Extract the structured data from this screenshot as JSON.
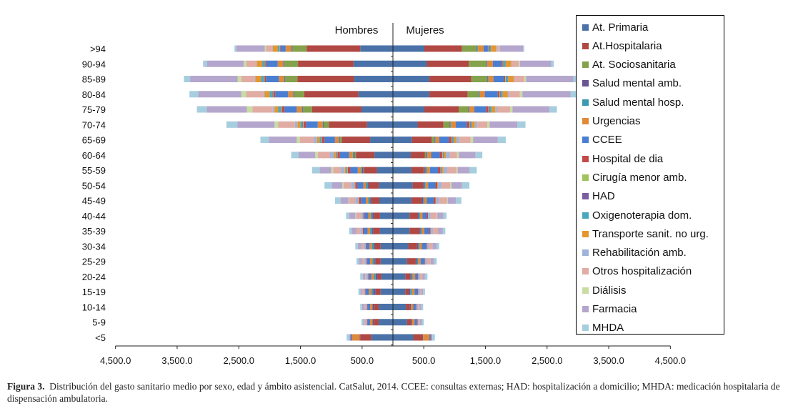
{
  "chart_data": {
    "type": "bar",
    "orientation": "horizontal",
    "stacked": true,
    "population_pyramid": true,
    "categories": [
      "<5",
      "5-9",
      "10-14",
      "15-19",
      "20-24",
      "25-29",
      "30-34",
      "35-39",
      "40-44",
      "45-49",
      "50-54",
      "55-59",
      "60-64",
      "65-69",
      "70-74",
      "75-79",
      "80-84",
      "85-89",
      "90-94",
      ">94"
    ],
    "header_left": "Hombres",
    "header_right": "Mujeres",
    "xlim": [
      -4500,
      4500
    ],
    "xticks": [
      -4500,
      -3500,
      -2500,
      -1500,
      -500,
      500,
      1500,
      2500,
      3500,
      4500
    ],
    "xtick_labels": [
      "4,500.0",
      "3,500.0",
      "2,500.0",
      "1,500.0",
      "500.0",
      "500.0",
      "1,500.0",
      "2,500.0",
      "3,500.0",
      "4,500.0"
    ],
    "grid": false,
    "legend_position": "right",
    "series": [
      {
        "name": "At. Primaria",
        "color": "#4a72a8",
        "hombres": [
          350,
          230,
          230,
          200,
          190,
          200,
          200,
          210,
          210,
          220,
          230,
          260,
          300,
          370,
          420,
          510,
          560,
          630,
          640,
          530
        ],
        "mujeres": [
          330,
          230,
          210,
          200,
          200,
          230,
          250,
          270,
          270,
          300,
          320,
          300,
          290,
          310,
          400,
          510,
          590,
          590,
          550,
          510
        ]
      },
      {
        "name": "At.Hospitalaria",
        "color": "#b04844",
        "hombres": [
          180,
          80,
          70,
          80,
          60,
          80,
          90,
          110,
          100,
          130,
          160,
          210,
          300,
          460,
          620,
          800,
          880,
          920,
          900,
          870
        ],
        "mujeres": [
          150,
          60,
          60,
          60,
          80,
          140,
          140,
          160,
          130,
          170,
          170,
          200,
          230,
          320,
          420,
          560,
          620,
          680,
          680,
          610
        ]
      },
      {
        "name": "At. Sociosanitaria",
        "color": "#84a24c",
        "hombres": [
          0,
          0,
          0,
          0,
          0,
          0,
          0,
          0,
          0,
          0,
          0,
          10,
          20,
          30,
          80,
          150,
          160,
          200,
          220,
          230
        ],
        "mujeres": [
          0,
          0,
          0,
          0,
          0,
          0,
          0,
          0,
          0,
          0,
          0,
          10,
          20,
          40,
          100,
          150,
          180,
          260,
          280,
          240
        ]
      },
      {
        "name": "Salud mental amb.",
        "color": "#6b5592",
        "hombres": [
          10,
          20,
          30,
          40,
          30,
          20,
          20,
          20,
          20,
          20,
          20,
          20,
          10,
          10,
          10,
          10,
          10,
          10,
          10,
          10
        ],
        "mujeres": [
          10,
          20,
          20,
          20,
          20,
          20,
          20,
          20,
          20,
          20,
          20,
          20,
          10,
          10,
          10,
          10,
          10,
          10,
          10,
          10
        ]
      },
      {
        "name": "Salud mental hosp.",
        "color": "#3c9ab0",
        "hombres": [
          0,
          0,
          0,
          30,
          30,
          30,
          30,
          30,
          30,
          30,
          30,
          20,
          20,
          10,
          10,
          10,
          10,
          10,
          10,
          10
        ],
        "mujeres": [
          0,
          0,
          0,
          30,
          20,
          20,
          20,
          20,
          20,
          20,
          20,
          20,
          10,
          10,
          10,
          10,
          10,
          10,
          10,
          10
        ]
      },
      {
        "name": "Urgencias",
        "color": "#e08a3a",
        "hombres": [
          120,
          40,
          40,
          40,
          40,
          40,
          40,
          40,
          40,
          40,
          40,
          50,
          60,
          60,
          80,
          80,
          80,
          80,
          90,
          90
        ],
        "mujeres": [
          100,
          40,
          40,
          40,
          40,
          40,
          40,
          40,
          40,
          40,
          40,
          50,
          60,
          60,
          80,
          80,
          80,
          80,
          90,
          90
        ]
      },
      {
        "name": "CCEE",
        "color": "#4a7ed0",
        "hombres": [
          20,
          40,
          40,
          50,
          40,
          50,
          50,
          60,
          60,
          80,
          100,
          120,
          150,
          170,
          190,
          200,
          210,
          210,
          180,
          80
        ],
        "mujeres": [
          20,
          40,
          40,
          50,
          40,
          60,
          70,
          80,
          70,
          110,
          120,
          130,
          140,
          160,
          180,
          190,
          210,
          170,
          140,
          70
        ]
      },
      {
        "name": "Hospital de dia",
        "color": "#c44a4a",
        "hombres": [
          10,
          10,
          10,
          10,
          10,
          10,
          10,
          20,
          20,
          30,
          30,
          40,
          40,
          40,
          40,
          40,
          30,
          20,
          20,
          10
        ],
        "mujeres": [
          10,
          10,
          10,
          10,
          10,
          10,
          10,
          20,
          20,
          30,
          30,
          40,
          40,
          40,
          40,
          40,
          30,
          20,
          20,
          10
        ]
      },
      {
        "name": "Cirugía menor amb.",
        "color": "#9fc45c",
        "hombres": [
          0,
          0,
          0,
          0,
          0,
          0,
          0,
          0,
          0,
          0,
          0,
          10,
          10,
          10,
          10,
          10,
          10,
          10,
          10,
          10
        ],
        "mujeres": [
          0,
          0,
          0,
          0,
          0,
          0,
          0,
          0,
          0,
          0,
          0,
          10,
          10,
          10,
          10,
          10,
          10,
          10,
          10,
          10
        ]
      },
      {
        "name": "HAD",
        "color": "#7b5ea2",
        "hombres": [
          0,
          0,
          0,
          0,
          0,
          0,
          0,
          0,
          0,
          0,
          0,
          10,
          10,
          10,
          10,
          10,
          10,
          10,
          10,
          10
        ],
        "mujeres": [
          0,
          0,
          0,
          0,
          0,
          0,
          0,
          0,
          0,
          0,
          0,
          10,
          10,
          10,
          10,
          10,
          10,
          10,
          10,
          10
        ]
      },
      {
        "name": "Oxigenoterapia dom.",
        "color": "#4aa8bc",
        "hombres": [
          0,
          0,
          0,
          0,
          0,
          0,
          0,
          0,
          0,
          0,
          0,
          10,
          10,
          20,
          30,
          40,
          40,
          40,
          30,
          20
        ],
        "mujeres": [
          0,
          0,
          0,
          0,
          0,
          0,
          0,
          0,
          0,
          0,
          0,
          10,
          10,
          20,
          20,
          30,
          30,
          30,
          30,
          20
        ]
      },
      {
        "name": "Transporte sanit. no urg.",
        "color": "#e6962e",
        "hombres": [
          0,
          0,
          0,
          0,
          0,
          0,
          0,
          0,
          0,
          10,
          10,
          20,
          30,
          40,
          50,
          60,
          80,
          90,
          90,
          80
        ],
        "mujeres": [
          0,
          0,
          0,
          0,
          0,
          0,
          0,
          0,
          0,
          10,
          10,
          20,
          30,
          40,
          50,
          60,
          80,
          90,
          90,
          80
        ]
      },
      {
        "name": "Rehabilitación amb.",
        "color": "#9fb4d8",
        "hombres": [
          20,
          20,
          30,
          30,
          30,
          30,
          30,
          40,
          40,
          50,
          60,
          60,
          60,
          50,
          40,
          30,
          20,
          10,
          10,
          10
        ],
        "mujeres": [
          20,
          20,
          30,
          30,
          30,
          30,
          30,
          40,
          40,
          50,
          60,
          60,
          60,
          50,
          40,
          30,
          20,
          10,
          10,
          10
        ]
      },
      {
        "name": "Otros hospitalización",
        "color": "#e0aca4",
        "hombres": [
          0,
          20,
          20,
          20,
          20,
          40,
          40,
          60,
          80,
          100,
          120,
          130,
          200,
          230,
          270,
          330,
          280,
          220,
          160,
          100
        ],
        "mujeres": [
          0,
          20,
          20,
          20,
          40,
          60,
          60,
          80,
          100,
          130,
          140,
          150,
          120,
          180,
          160,
          210,
          180,
          160,
          110,
          40
        ]
      },
      {
        "name": "Diálisis",
        "color": "#c8dca4",
        "hombres": [
          0,
          0,
          0,
          0,
          0,
          0,
          0,
          0,
          10,
          10,
          20,
          30,
          40,
          50,
          60,
          90,
          80,
          60,
          40,
          20
        ],
        "mujeres": [
          0,
          0,
          0,
          0,
          0,
          0,
          0,
          0,
          10,
          10,
          20,
          20,
          30,
          40,
          40,
          40,
          40,
          30,
          20,
          10
        ]
      },
      {
        "name": "Farmacia",
        "color": "#b4a6cc",
        "hombres": [
          0,
          20,
          30,
          30,
          40,
          50,
          60,
          80,
          100,
          130,
          170,
          190,
          270,
          450,
          600,
          650,
          700,
          770,
          600,
          460
        ],
        "mujeres": [
          0,
          30,
          30,
          30,
          40,
          60,
          70,
          80,
          100,
          130,
          170,
          190,
          270,
          400,
          450,
          600,
          780,
          770,
          510,
          380
        ]
      },
      {
        "name": "MHDA",
        "color": "#a6cede",
        "hombres": [
          40,
          30,
          30,
          30,
          40,
          40,
          40,
          40,
          50,
          90,
          120,
          120,
          120,
          140,
          180,
          160,
          140,
          100,
          60,
          30
        ],
        "mujeres": [
          40,
          30,
          30,
          30,
          40,
          40,
          40,
          40,
          50,
          90,
          120,
          120,
          110,
          130,
          130,
          120,
          90,
          60,
          40,
          20
        ]
      }
    ]
  },
  "caption": {
    "label": "Figura 3.",
    "text": "Distribución del gasto sanitario medio por sexo, edad y ámbito asistencial. CatSalut, 2014. CCEE: consultas externas; HAD: hospitalización a domicilio; MHDA: medicación hospitalaria de dispensación ambulatoria."
  }
}
